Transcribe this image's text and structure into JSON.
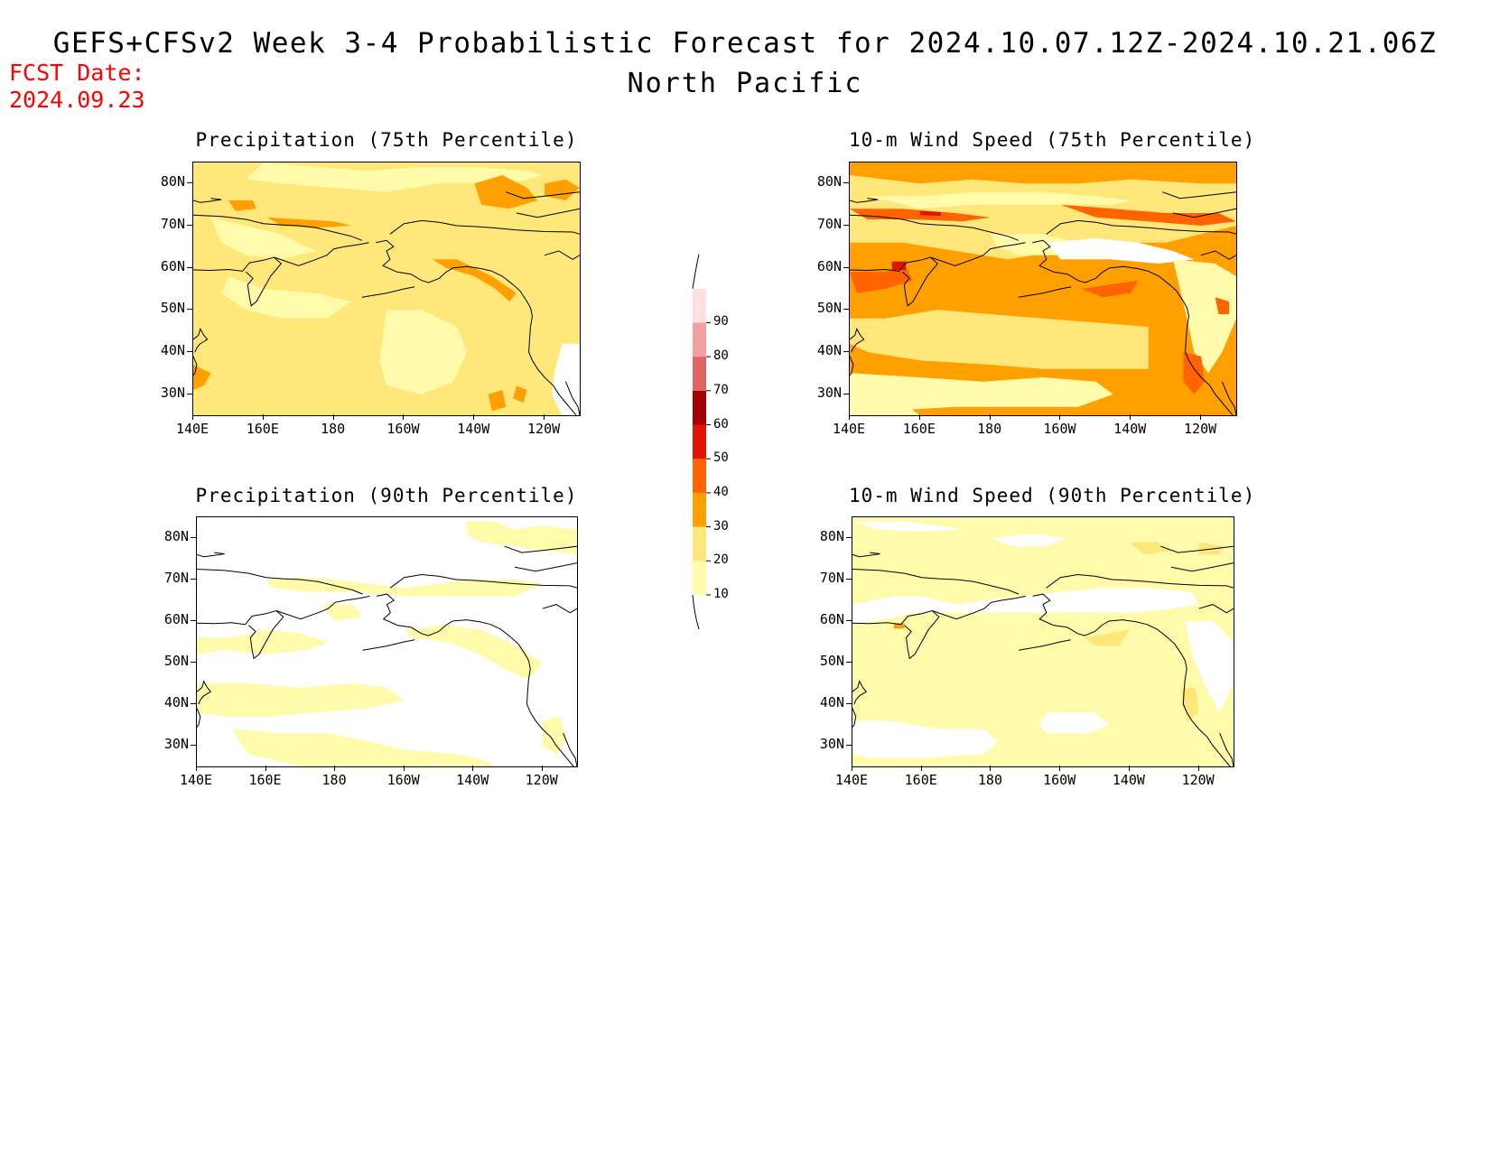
{
  "header": {
    "title": "GEFS+CFSv2 Week 3-4 Probabilistic Forecast for 2024.10.07.12Z-2024.10.21.06Z",
    "subtitle": "North Pacific",
    "fcst_date_label": "FCST Date:",
    "fcst_date_value": "2024.09.23"
  },
  "axes": {
    "lat_labels": [
      "80N",
      "70N",
      "60N",
      "50N",
      "40N",
      "30N"
    ],
    "lon_labels": [
      "140E",
      "160E",
      "180",
      "160W",
      "140W",
      "120W"
    ]
  },
  "panels": [
    {
      "id": "precip75",
      "title": "Precipitation (75th Percentile)",
      "dominant_level": "20-30"
    },
    {
      "id": "wind75",
      "title": "10-m Wind Speed (75th Percentile)",
      "dominant_level": "30-40"
    },
    {
      "id": "precip90",
      "title": "Precipitation (90th Percentile)",
      "dominant_level": "<10"
    },
    {
      "id": "wind90",
      "title": "10-m Wind Speed (90th Percentile)",
      "dominant_level": "10-20"
    }
  ],
  "colorbar": {
    "levels": [
      "10",
      "20",
      "30",
      "40",
      "50",
      "60",
      "70",
      "80",
      "90"
    ],
    "colors": [
      "#fffbaa",
      "#ffe77a",
      "#ffa000",
      "#ff6400",
      "#e11400",
      "#a50000",
      "#e16464",
      "#f5a0a0",
      "#ffe1e1"
    ]
  },
  "palette": {
    "white": "#ffffff",
    "yellow_light": "#fffbaa",
    "yellow": "#ffe77a",
    "orange": "#ffa000",
    "orange_dark": "#ff6400",
    "red": "#e11400",
    "coast": "#000000"
  }
}
